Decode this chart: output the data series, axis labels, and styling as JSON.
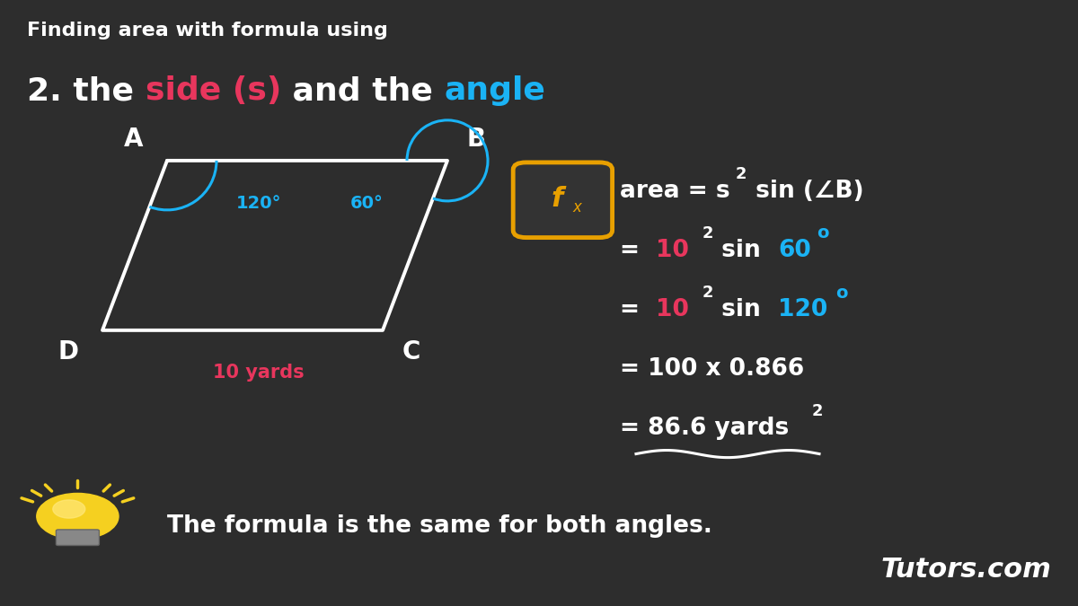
{
  "bg_color": "#2d2d2d",
  "title_line1": "Finding area with formula using",
  "title_line2_parts": [
    {
      "text": "2. the ",
      "color": "#ffffff"
    },
    {
      "text": "side (s)",
      "color": "#e8365d"
    },
    {
      "text": " and the ",
      "color": "#ffffff"
    },
    {
      "text": "angle",
      "color": "#1ab3f5"
    }
  ],
  "angle_color": "#1ab3f5",
  "label_10yards_color": "#e8365d",
  "formula_box_color": "#e8a000",
  "formula_box_bg": "#333333",
  "white": "#ffffff",
  "pink": "#e8365d",
  "blue": "#1ab3f5",
  "tutors_color": "#ffffff",
  "hint_text": "The formula is the same for both angles.",
  "hint_color": "#ffffff",
  "rhombus_color": "#ffffff",
  "rh_A": [
    0.155,
    0.735
  ],
  "rh_B": [
    0.415,
    0.735
  ],
  "rh_C": [
    0.355,
    0.455
  ],
  "rh_D": [
    0.095,
    0.455
  ]
}
